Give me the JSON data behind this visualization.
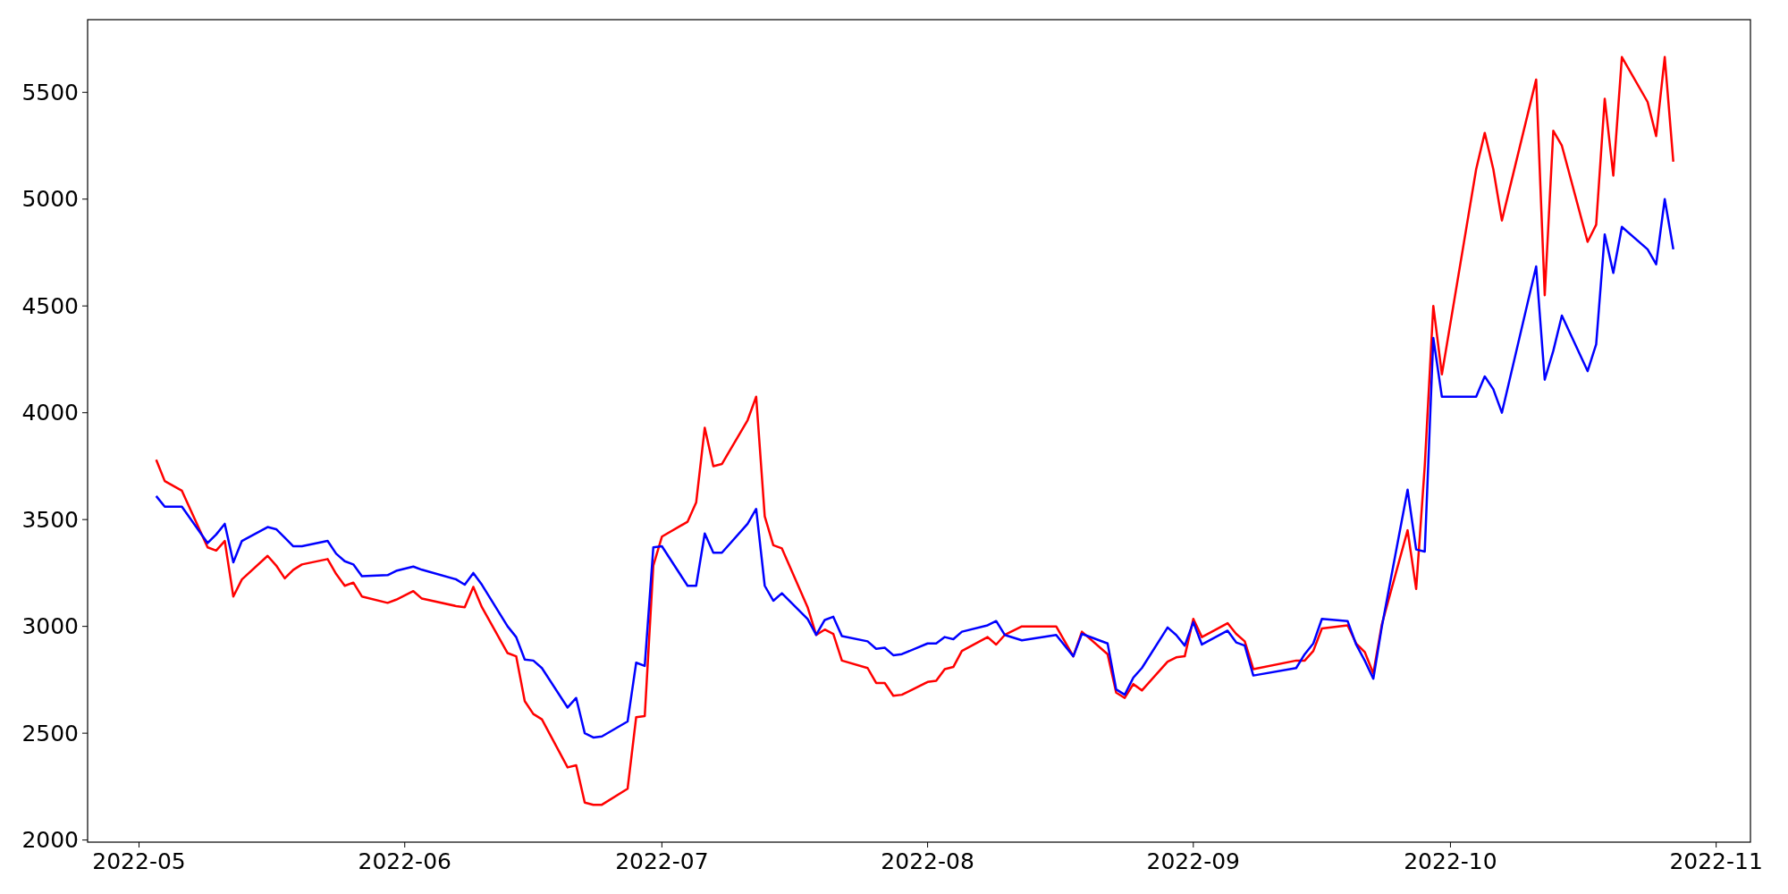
{
  "chart_data": {
    "type": "line",
    "x": [
      "2022-05-03",
      "2022-05-04",
      "2022-05-06",
      "2022-05-09",
      "2022-05-10",
      "2022-05-11",
      "2022-05-12",
      "2022-05-13",
      "2022-05-16",
      "2022-05-17",
      "2022-05-18",
      "2022-05-19",
      "2022-05-20",
      "2022-05-23",
      "2022-05-24",
      "2022-05-25",
      "2022-05-26",
      "2022-05-27",
      "2022-05-30",
      "2022-05-31",
      "2022-06-02",
      "2022-06-03",
      "2022-06-07",
      "2022-06-08",
      "2022-06-09",
      "2022-06-10",
      "2022-06-13",
      "2022-06-14",
      "2022-06-15",
      "2022-06-16",
      "2022-06-17",
      "2022-06-20",
      "2022-06-21",
      "2022-06-22",
      "2022-06-23",
      "2022-06-24",
      "2022-06-27",
      "2022-06-28",
      "2022-06-29",
      "2022-06-30",
      "2022-07-01",
      "2022-07-04",
      "2022-07-05",
      "2022-07-06",
      "2022-07-07",
      "2022-07-08",
      "2022-07-11",
      "2022-07-12",
      "2022-07-13",
      "2022-07-14",
      "2022-07-15",
      "2022-07-18",
      "2022-07-19",
      "2022-07-20",
      "2022-07-21",
      "2022-07-22",
      "2022-07-25",
      "2022-07-26",
      "2022-07-27",
      "2022-07-28",
      "2022-07-29",
      "2022-08-01",
      "2022-08-02",
      "2022-08-03",
      "2022-08-04",
      "2022-08-05",
      "2022-08-08",
      "2022-08-09",
      "2022-08-10",
      "2022-08-12",
      "2022-08-16",
      "2022-08-18",
      "2022-08-19",
      "2022-08-22",
      "2022-08-23",
      "2022-08-24",
      "2022-08-25",
      "2022-08-26",
      "2022-08-29",
      "2022-08-30",
      "2022-08-31",
      "2022-09-01",
      "2022-09-02",
      "2022-09-05",
      "2022-09-06",
      "2022-09-07",
      "2022-09-08",
      "2022-09-13",
      "2022-09-14",
      "2022-09-15",
      "2022-09-16",
      "2022-09-19",
      "2022-09-20",
      "2022-09-21",
      "2022-09-22",
      "2022-09-23",
      "2022-09-26",
      "2022-09-27",
      "2022-09-28",
      "2022-09-29",
      "2022-09-30",
      "2022-10-04",
      "2022-10-05",
      "2022-10-06",
      "2022-10-07",
      "2022-10-11",
      "2022-10-12",
      "2022-10-13",
      "2022-10-14",
      "2022-10-17",
      "2022-10-18",
      "2022-10-19",
      "2022-10-20",
      "2022-10-21",
      "2022-10-24",
      "2022-10-25",
      "2022-10-26",
      "2022-10-27"
    ],
    "series": [
      {
        "color": "#ff0000",
        "values": [
          3780,
          3680,
          3635,
          3370,
          3355,
          3400,
          3140,
          3220,
          3330,
          3285,
          3225,
          3265,
          3290,
          3315,
          3245,
          3190,
          3205,
          3140,
          3110,
          3125,
          3165,
          3130,
          3095,
          3090,
          3185,
          3090,
          2875,
          2860,
          2650,
          2590,
          2565,
          2340,
          2350,
          2175,
          2165,
          2165,
          2240,
          2575,
          2580,
          3285,
          3420,
          3490,
          3580,
          3930,
          3750,
          3760,
          3965,
          4075,
          3515,
          3380,
          3365,
          3090,
          2960,
          2985,
          2965,
          2840,
          2805,
          2735,
          2735,
          2675,
          2680,
          2740,
          2745,
          2800,
          2810,
          2885,
          2950,
          2915,
          2960,
          3000,
          3000,
          2860,
          2975,
          2870,
          2690,
          2665,
          2730,
          2700,
          2835,
          2855,
          2860,
          3035,
          2950,
          3015,
          2965,
          2930,
          2800,
          2840,
          2840,
          2885,
          2990,
          3005,
          2920,
          2880,
          2780,
          3010,
          3450,
          3175,
          3750,
          4500,
          4180,
          5140,
          5310,
          5140,
          4900,
          5560,
          4550,
          5320,
          5250,
          4800,
          4880,
          5470,
          5110,
          5665,
          5455,
          5295,
          5665,
          5175
        ]
      },
      {
        "color": "#0000ff",
        "values": [
          3610,
          3560,
          3560,
          3390,
          3430,
          3480,
          3300,
          3400,
          3465,
          3455,
          3415,
          3375,
          3375,
          3400,
          3340,
          3305,
          3290,
          3235,
          3240,
          3260,
          3280,
          3265,
          3220,
          3195,
          3250,
          3195,
          3000,
          2950,
          2845,
          2840,
          2805,
          2620,
          2665,
          2500,
          2480,
          2485,
          2555,
          2830,
          2815,
          3370,
          3375,
          3190,
          3190,
          3435,
          3345,
          3345,
          3480,
          3550,
          3190,
          3120,
          3155,
          3035,
          2960,
          3030,
          3045,
          2955,
          2930,
          2895,
          2900,
          2865,
          2870,
          2920,
          2920,
          2950,
          2940,
          2975,
          3005,
          3025,
          2960,
          2935,
          2960,
          2860,
          2965,
          2920,
          2705,
          2680,
          2760,
          2805,
          2995,
          2960,
          2910,
          3020,
          2915,
          2980,
          2925,
          2910,
          2770,
          2805,
          2870,
          2920,
          3035,
          3025,
          2915,
          2840,
          2755,
          3000,
          3640,
          3360,
          3350,
          4350,
          4075,
          4075,
          4170,
          4110,
          4000,
          4685,
          4155,
          4290,
          4455,
          4195,
          4320,
          4835,
          4655,
          4870,
          4765,
          4695,
          5000,
          4765
        ]
      }
    ],
    "xlim": [
      "2022-04-25",
      "2022-11-05"
    ],
    "xticks": [
      {
        "value": "2022-05-01",
        "label": "2022-05"
      },
      {
        "value": "2022-06-01",
        "label": "2022-06"
      },
      {
        "value": "2022-07-01",
        "label": "2022-07"
      },
      {
        "value": "2022-08-01",
        "label": "2022-08"
      },
      {
        "value": "2022-09-01",
        "label": "2022-09"
      },
      {
        "value": "2022-10-01",
        "label": "2022-10"
      },
      {
        "value": "2022-11-01",
        "label": "2022-11"
      }
    ],
    "ylim": [
      1990,
      5840
    ],
    "yticks": [
      2000,
      2500,
      3000,
      3500,
      4000,
      4500,
      5000,
      5500
    ],
    "grid": false,
    "marker": "none",
    "line_style": "solid"
  }
}
